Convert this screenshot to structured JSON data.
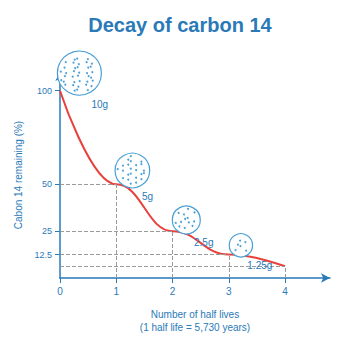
{
  "chart_data": {
    "type": "line",
    "title": "Decay of carbon 14",
    "x_label": "Number of half lives",
    "x_sublabel": "(1 half life = 5,730 years)",
    "y_label": "Cabon 14 remaining (%)",
    "x": [
      0,
      1,
      2,
      3,
      4
    ],
    "values": [
      100,
      50,
      25,
      12.5,
      6.25
    ],
    "annotations": [
      "10g",
      "5g",
      "2.5g",
      "1.25g",
      null
    ],
    "color": "#e8413c",
    "line_style": "solid",
    "xlim": [
      0,
      4.8
    ],
    "ylim": [
      0,
      110
    ],
    "xticks": [
      0,
      1,
      2,
      3,
      4
    ],
    "yticks": [
      12.5,
      25,
      50,
      100
    ],
    "grid": false
  }
}
